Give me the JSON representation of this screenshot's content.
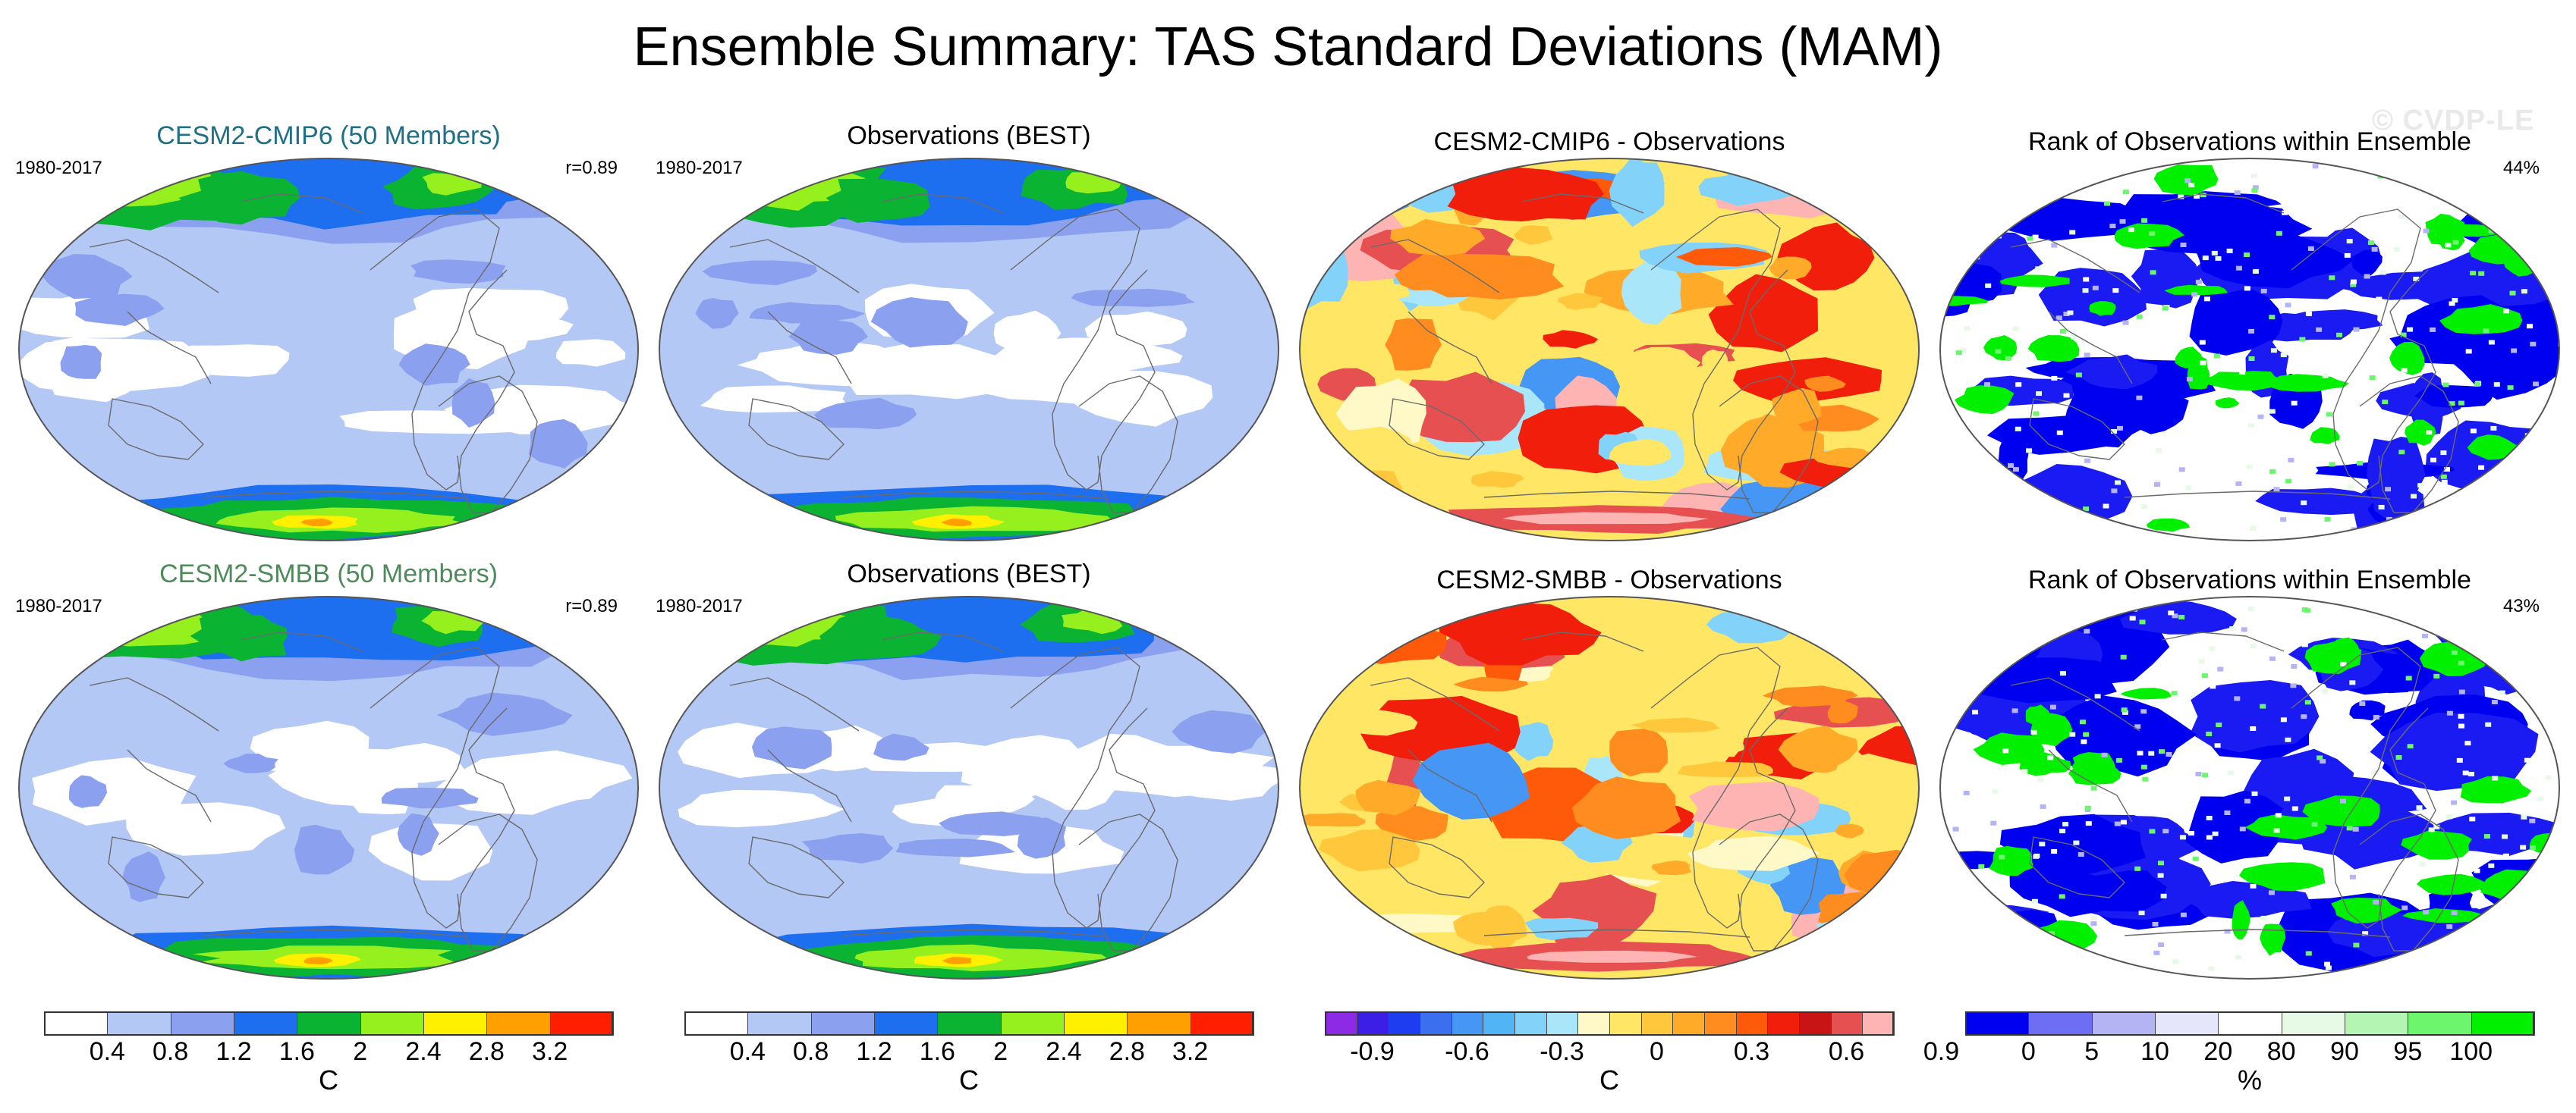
{
  "title": "Ensemble Summary: TAS Standard Deviations (MAM)",
  "watermark": "© CVDP-LE",
  "rows": [
    {
      "panels": [
        {
          "title": "CESM2-CMIP6 (50 Members)",
          "title_color": "#1f6f86",
          "period": "1980-2017",
          "stat": "r=0.89",
          "kind": "std_model",
          "seed": 11
        },
        {
          "title": "Observations (BEST)",
          "title_color": "#000000",
          "period": "1980-2017",
          "stat": "",
          "kind": "std_obs",
          "seed": 23
        },
        {
          "title": "CESM2-CMIP6 - Observations",
          "title_color": "#000000",
          "period": "",
          "stat": "",
          "kind": "diff",
          "seed": 37
        },
        {
          "title": "Rank of Observations within Ensemble",
          "title_color": "#000000",
          "period": "",
          "stat": "44%",
          "kind": "rank",
          "seed": 41
        }
      ]
    },
    {
      "panels": [
        {
          "title": "CESM2-SMBB (50 Members)",
          "title_color": "#4f8a5b",
          "period": "1980-2017",
          "stat": "r=0.89",
          "kind": "std_model",
          "seed": 53
        },
        {
          "title": "Observations (BEST)",
          "title_color": "#000000",
          "period": "1980-2017",
          "stat": "",
          "kind": "std_obs",
          "seed": 67
        },
        {
          "title": "CESM2-SMBB - Observations",
          "title_color": "#000000",
          "period": "",
          "stat": "",
          "kind": "diff",
          "seed": 71
        },
        {
          "title": "Rank of Observations within Ensemble",
          "title_color": "#000000",
          "period": "",
          "stat": "43%",
          "kind": "rank",
          "seed": 83
        }
      ]
    }
  ],
  "colorbars": [
    {
      "name": "std-colorbar-1",
      "colors": [
        "#ffffff",
        "#b4c8f5",
        "#8ca0f0",
        "#1e6ef0",
        "#0ab432",
        "#96f01e",
        "#fff000",
        "#ffa000",
        "#ff1e00"
      ],
      "ticks": [
        "0.4",
        "0.8",
        "1.2",
        "1.6",
        "2",
        "2.4",
        "2.8",
        "3.2"
      ],
      "unit": "C"
    },
    {
      "name": "std-colorbar-2",
      "colors": [
        "#ffffff",
        "#b4c8f5",
        "#8ca0f0",
        "#1e6ef0",
        "#0ab432",
        "#96f01e",
        "#fff000",
        "#ffa000",
        "#ff1e00"
      ],
      "ticks": [
        "0.4",
        "0.8",
        "1.2",
        "1.6",
        "2",
        "2.4",
        "2.8",
        "3.2"
      ],
      "unit": "C"
    },
    {
      "name": "diff-colorbar",
      "colors": [
        "#8c2ae6",
        "#3c1ee6",
        "#1e3cf0",
        "#3c6ef0",
        "#4696f5",
        "#50b4f5",
        "#82d2fa",
        "#aae6fa",
        "#fff9c8",
        "#ffe664",
        "#ffc83c",
        "#ffaa28",
        "#ff8c1e",
        "#ff5a0a",
        "#f01e0a",
        "#c81414",
        "#e65050",
        "#ffb4b4"
      ],
      "ticks": [
        "-0.9",
        "-0.6",
        "-0.3",
        "0",
        "0.3",
        "0.6",
        "0.9"
      ],
      "unit": "C"
    },
    {
      "name": "rank-colorbar",
      "colors": [
        "#0000f0",
        "#6e6ef5",
        "#b4b4f5",
        "#e6e6fa",
        "#ffffff",
        "#e6fae6",
        "#b4f5b4",
        "#6ef56e",
        "#00f000"
      ],
      "ticks": [
        "0",
        "5",
        "10",
        "20",
        "80",
        "90",
        "95",
        "100"
      ],
      "unit": "%"
    }
  ]
}
